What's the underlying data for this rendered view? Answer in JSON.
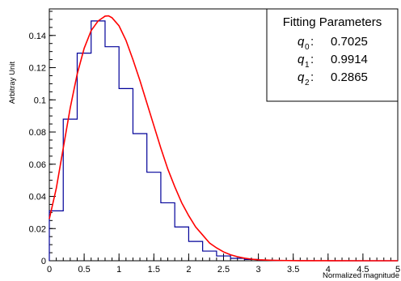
{
  "chart_data": {
    "type": "bar",
    "xlabel": "Normalized magnitude",
    "ylabel": "Arbitray Unit",
    "xlim": [
      0,
      5
    ],
    "ylim": [
      0,
      0.1565
    ],
    "x_ticks": [
      "0",
      "0.5",
      "1",
      "1.5",
      "2",
      "2.5",
      "3",
      "3.5",
      "4",
      "4.5",
      "5"
    ],
    "y_ticks": [
      "0",
      "0.02",
      "0.04",
      "0.06",
      "0.08",
      "0.1",
      "0.12",
      "0.14"
    ],
    "histogram": {
      "bin_width": 0.2,
      "bin_edges_start": 0,
      "values": [
        0.031,
        0.088,
        0.129,
        0.149,
        0.133,
        0.107,
        0.079,
        0.055,
        0.036,
        0.021,
        0.012,
        0.006,
        0.003,
        0.0015,
        0.0008,
        0.0004,
        0.0002,
        0.0001,
        5e-05,
        2e-05,
        1e-05,
        0,
        0,
        0,
        0
      ],
      "color": "#000099"
    },
    "fit_curve": {
      "x": [
        0,
        0.1,
        0.2,
        0.3,
        0.4,
        0.5,
        0.6,
        0.7,
        0.8,
        0.85,
        0.9,
        1.0,
        1.1,
        1.2,
        1.3,
        1.4,
        1.5,
        1.6,
        1.7,
        1.8,
        1.9,
        2.0,
        2.1,
        2.2,
        2.3,
        2.4,
        2.5,
        2.6,
        2.7,
        2.8,
        2.9,
        3.0,
        3.2,
        3.4,
        3.6,
        3.8,
        4.0,
        4.5,
        5.0
      ],
      "y": [
        0.026,
        0.045,
        0.07,
        0.095,
        0.116,
        0.132,
        0.143,
        0.149,
        0.152,
        0.1522,
        0.151,
        0.146,
        0.137,
        0.125,
        0.112,
        0.098,
        0.084,
        0.07,
        0.057,
        0.046,
        0.036,
        0.028,
        0.021,
        0.016,
        0.011,
        0.008,
        0.0055,
        0.0037,
        0.0025,
        0.0016,
        0.001,
        0.0006,
        0.0003,
        0.00012,
        5e-05,
        2e-05,
        1e-05,
        0,
        0
      ],
      "color": "#ff0000"
    }
  },
  "fit_box": {
    "title": "Fitting Parameters",
    "params": [
      {
        "name": "q",
        "sub": "0",
        "value": "0.7025"
      },
      {
        "name": "q",
        "sub": "1",
        "value": "0.9914"
      },
      {
        "name": "q",
        "sub": "2",
        "value": "0.2865"
      }
    ]
  }
}
